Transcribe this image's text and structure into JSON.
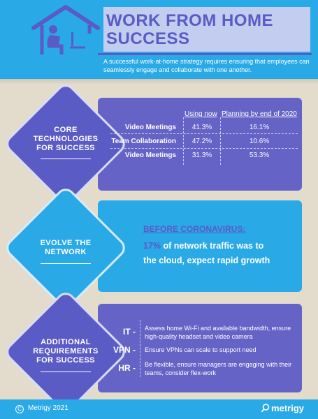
{
  "header": {
    "title_line1": "WORK FROM HOME",
    "title_line2": "SUCCESS",
    "subtitle": "A successful work-at-home strategy requires ensuring that employees can seamlessly engage and collaborate with one another.",
    "colors": {
      "blue": "#29a9e6",
      "purple": "#5b5bc6",
      "lavender": "#c2cdf0",
      "beige": "#e3dccd"
    }
  },
  "sections": {
    "core": {
      "line1": "CORE",
      "line2": "TECHNOLOGIES",
      "line3": "FOR SUCCESS",
      "col1": "Using now",
      "col2": "Planning by end of 2020",
      "rows": [
        {
          "label": "Video Meetings",
          "now": "41.3%",
          "plan": "16.1%"
        },
        {
          "label": "Team Collaboration",
          "now": "47.2%",
          "plan": "10.6%"
        },
        {
          "label": "Video Meetings",
          "now": "31.3%",
          "plan": "53.3%"
        }
      ]
    },
    "evolve": {
      "line1": "EVOLVE THE",
      "line2": "NETWORK",
      "before": "BEFORE CORONAVIRUS:",
      "pct": "17%",
      "stat_rest1": " of network traffic was to",
      "stat_rest2": "the cloud, expect rapid growth"
    },
    "additional": {
      "line1": "ADDITIONAL",
      "line2": "REQUIREMENTS",
      "line3": "FOR SUCCESS",
      "items": [
        {
          "key": "IT -",
          "text": "Assess home Wi-Fi and available bandwidth, ensure high-quality headset and video camera"
        },
        {
          "key": "VPN -",
          "text": "Ensure VPNs can scale to support need"
        },
        {
          "key": "HR -",
          "text": "Be flexible, ensure managers are engaging with their teams, consider flex-work"
        }
      ]
    }
  },
  "footer": {
    "copyright_symbol": "C",
    "copyright": "Metrigy 2021",
    "brand": "metrigy",
    "brand_icon": "magnifier-icon"
  }
}
